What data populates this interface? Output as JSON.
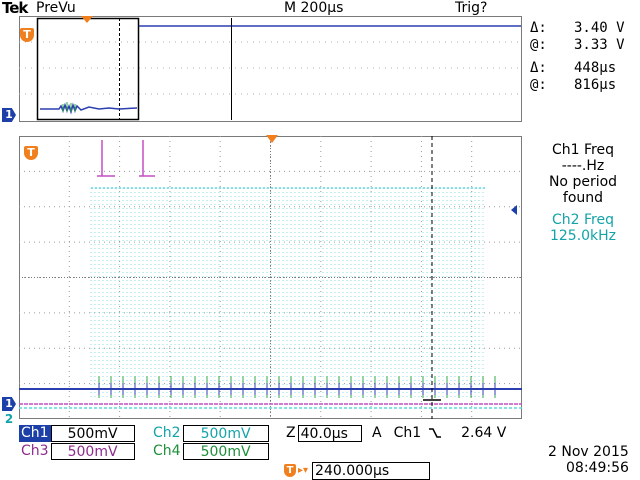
{
  "header": {
    "brand": "Tek",
    "mode": "PreVu",
    "timebase": "M 200µs",
    "trigger_status": "Trig?"
  },
  "cursor_readout": {
    "voltage_delta_label": "Δ:",
    "voltage_delta": "3.40 V",
    "voltage_at_label": "@:",
    "voltage_at": "3.33 V",
    "time_delta_label": "Δ:",
    "time_delta": "448µs",
    "time_at_label": "@:",
    "time_at": "816µs"
  },
  "measurements": {
    "ch1_title": "Ch1 Freq",
    "ch1_value": "----.Hz",
    "ch1_note_line1": "No period",
    "ch1_note_line2": "found",
    "ch2_title": "Ch2 Freq",
    "ch2_value": "125.0kHz"
  },
  "channel_settings": {
    "ch1_name": "Ch1",
    "ch1_scale": "500mV",
    "ch2_name": "Ch2",
    "ch2_scale": "500mV",
    "ch3_name": "Ch3",
    "ch3_scale": "500mV",
    "ch4_name": "Ch4",
    "ch4_scale": "500mV"
  },
  "zoom": {
    "label": "Z",
    "scale": "40.0µs"
  },
  "trigger": {
    "label": "A",
    "source": "Ch1",
    "slope": "\\",
    "level": "2.64 V",
    "position": "240.000µs"
  },
  "markers": {
    "trigger_marker": "T",
    "ch1_marker": "1",
    "ch2_marker": "2"
  },
  "datetime": {
    "date": "2 Nov 2015",
    "time": "08:49:56"
  },
  "colors": {
    "ch1": "#2b3fb0",
    "ch2": "#5fd6e0",
    "ch3": "#c44fc4",
    "ch4": "#2fa84a",
    "accent": "#f0801e",
    "ch2_text": "#13a3a8",
    "ch3_text": "#8e2c8e",
    "ch4_text": "#1f8f3a"
  }
}
